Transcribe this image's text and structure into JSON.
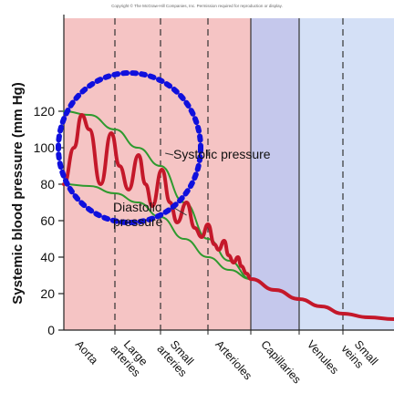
{
  "copyright": "Copyright © The McGraw-Hill Companies, Inc. Permission required for reproduction or display.",
  "chart_data": {
    "type": "line",
    "ylabel": "Systemic blood pressure (mm Hg)",
    "ylim": [
      0,
      130
    ],
    "yticks": [
      0,
      20,
      40,
      60,
      80,
      100,
      120
    ],
    "grid": false,
    "categories": [
      {
        "name": "Aorta",
        "lines": [
          "Aorta"
        ],
        "region": "arterial"
      },
      {
        "name": "Large arteries",
        "lines": [
          "Large",
          "arteries"
        ],
        "region": "arterial"
      },
      {
        "name": "Small arteries",
        "lines": [
          "Small",
          "arteries"
        ],
        "region": "arterial"
      },
      {
        "name": "Arterioles",
        "lines": [
          "Arterioles"
        ],
        "region": "arterial"
      },
      {
        "name": "Capillaries",
        "lines": [
          "Capillaries"
        ],
        "region": "capillary"
      },
      {
        "name": "Venules",
        "lines": [
          "Venules"
        ],
        "region": "venous"
      },
      {
        "name": "Small veins",
        "lines": [
          "Small",
          "veins"
        ],
        "region": "venous"
      }
    ],
    "region_colors": {
      "arterial": "#f5c4c4",
      "capillary": "#c5c8ec",
      "venous": "#d4e0f6"
    },
    "series": [
      {
        "name": "Systolic pressure",
        "color": "#2e9a2e",
        "points": [
          [
            0,
            120
          ],
          [
            0.5,
            118
          ],
          [
            1,
            110
          ],
          [
            1.5,
            100
          ],
          [
            2,
            90
          ],
          [
            2.5,
            70
          ],
          [
            3,
            50
          ],
          [
            3.5,
            38
          ],
          [
            4,
            28
          ]
        ]
      },
      {
        "name": "Diastolic pressure",
        "color": "#2e9a2e",
        "points": [
          [
            0,
            80
          ],
          [
            0.5,
            79
          ],
          [
            1,
            75
          ],
          [
            1.5,
            70
          ],
          [
            2,
            62
          ],
          [
            2.5,
            50
          ],
          [
            3,
            40
          ],
          [
            3.5,
            33
          ],
          [
            4,
            28
          ]
        ]
      },
      {
        "name": "Blood pressure",
        "color": "#c4182a",
        "points": [
          [
            0,
            80
          ],
          [
            0.2,
            100
          ],
          [
            0.35,
            118
          ],
          [
            0.5,
            110
          ],
          [
            0.72,
            80
          ],
          [
            0.93,
            108
          ],
          [
            1.1,
            90
          ],
          [
            1.3,
            77
          ],
          [
            1.52,
            96
          ],
          [
            1.67,
            80
          ],
          [
            1.82,
            68
          ],
          [
            2.03,
            88
          ],
          [
            2.2,
            70
          ],
          [
            2.35,
            59
          ],
          [
            2.55,
            70
          ],
          [
            2.72,
            56
          ],
          [
            2.87,
            51
          ],
          [
            3.0,
            58
          ],
          [
            3.15,
            47
          ],
          [
            3.25,
            44
          ],
          [
            3.38,
            49
          ],
          [
            3.48,
            41
          ],
          [
            3.6,
            37
          ],
          [
            3.7,
            40
          ],
          [
            3.78,
            35
          ],
          [
            3.9,
            31
          ],
          [
            4,
            28
          ],
          [
            4.5,
            22
          ],
          [
            5,
            17
          ],
          [
            5.5,
            13
          ],
          [
            6,
            9
          ],
          [
            6.5,
            7
          ],
          [
            7,
            6
          ]
        ]
      }
    ],
    "annotations": [
      {
        "text": "Systolic pressure",
        "lines": [
          "Systolic pressure"
        ]
      },
      {
        "text": "Diastolic pressure",
        "lines": [
          "Diastolic",
          "pressure"
        ]
      }
    ],
    "highlight": {
      "shape": "dotted-circle",
      "color": "#1010dd",
      "center": [
        1.4,
        98
      ]
    }
  }
}
